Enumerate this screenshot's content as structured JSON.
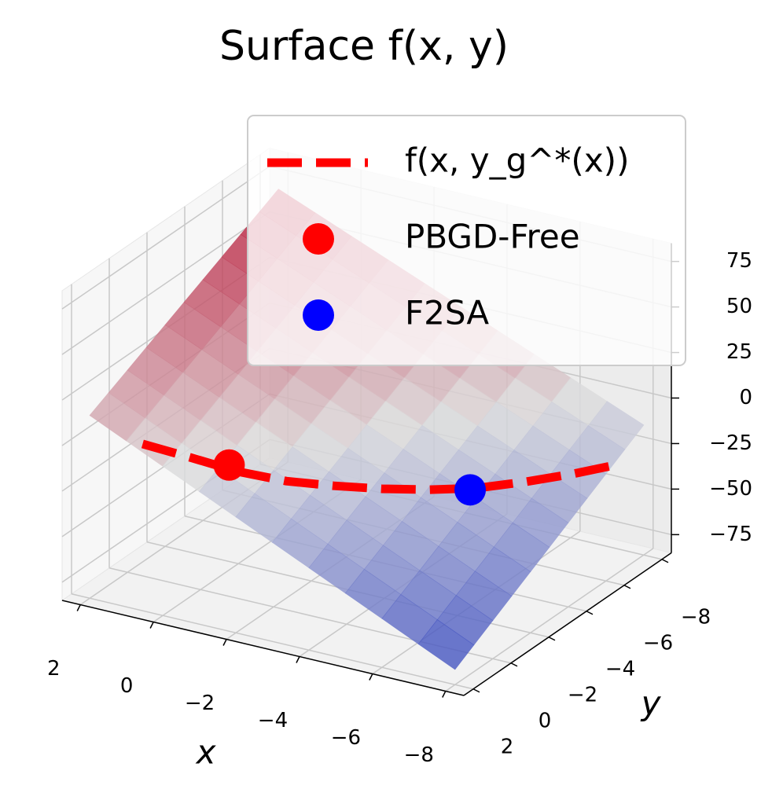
{
  "chart_data": {
    "type": "surface3d",
    "title": "Surface f(x, y)",
    "xlabel": "x",
    "ylabel": "y",
    "xlim": [
      2.5,
      -8.5
    ],
    "ylim": [
      2.5,
      -8.5
    ],
    "zlim": [
      -85,
      85
    ],
    "xticks": [
      2,
      0,
      {
        "value": -2,
        "label": "−2"
      },
      {
        "value": -4,
        "label": "−4"
      },
      {
        "value": -6,
        "label": "−6"
      },
      {
        "value": -8,
        "label": "−8"
      }
    ],
    "yticks": [
      {
        "value": -8,
        "label": "−8"
      },
      {
        "value": -6,
        "label": "−6"
      },
      {
        "value": -4,
        "label": "−4"
      },
      {
        "value": -2,
        "label": "−2"
      },
      0,
      2
    ],
    "zticks": [
      75,
      50,
      25,
      0,
      {
        "value": -25,
        "label": "−25"
      },
      {
        "value": -50,
        "label": "−50"
      },
      {
        "value": -75,
        "label": "−75"
      }
    ],
    "grid": true,
    "surface": {
      "colormap": "coolwarm",
      "x": [
        -8,
        -7,
        -6,
        -5,
        -4,
        -3,
        -2,
        -1,
        0,
        1,
        2
      ],
      "y": [
        -8,
        -7,
        -6,
        -5,
        -4,
        -3,
        -2,
        -1,
        0,
        1,
        2
      ],
      "z": [
        [
          -13.6,
          -5.4,
          2.8,
          11,
          19.2,
          27.4,
          35.6,
          43.8,
          52,
          60.2,
          68.4
        ],
        [
          -19.9,
          -11.6,
          -3.3,
          5,
          13.3,
          21.6,
          29.9,
          38.2,
          46.5,
          54.8,
          63.1
        ],
        [
          -26.2,
          -17.8,
          -9.4,
          -1,
          7.4,
          15.8,
          24.2,
          32.6,
          41,
          49.4,
          57.8
        ],
        [
          -32.5,
          -24,
          -15.5,
          -7,
          1.5,
          10,
          18.5,
          27,
          35.5,
          44,
          52.5
        ],
        [
          -38.8,
          -30.2,
          -21.6,
          -13,
          -4.4,
          4.2,
          12.8,
          21.4,
          30,
          38.6,
          47.2
        ],
        [
          -45.1,
          -36.4,
          -27.7,
          -19,
          -10.3,
          -1.6,
          7.1,
          15.8,
          24.5,
          33.2,
          41.9
        ],
        [
          -51.4,
          -42.6,
          -33.8,
          -25,
          -16.2,
          -7.4,
          1.4,
          10.2,
          19,
          27.8,
          36.6
        ],
        [
          -57.7,
          -48.8,
          -39.9,
          -31,
          -22.1,
          -13.2,
          -4.3,
          4.6,
          13.5,
          22.4,
          31.3
        ],
        [
          -64,
          -55,
          -46,
          -37,
          -28,
          -19,
          -10,
          -1,
          8,
          17,
          26
        ],
        [
          -70.3,
          -61.2,
          -52.1,
          -43,
          -33.9,
          -24.8,
          -15.7,
          -6.6,
          2.5,
          11.6,
          20.7
        ],
        [
          -76.6,
          -67.4,
          -58.2,
          -49,
          -39.8,
          -30.6,
          -21.4,
          -12.2,
          -3,
          6.2,
          15.4
        ]
      ]
    },
    "series": [
      {
        "name": "f(x, y_g^*(x))",
        "color": "#ff0000",
        "kind": "dashed-line",
        "x": [
          2,
          1,
          0,
          -1,
          -2,
          -3,
          -4,
          -5,
          -6,
          -7,
          -8
        ],
        "y": [
          -0.8,
          -1.4,
          -2,
          -2.6,
          -3.2,
          -3.8,
          -4.4,
          -5,
          -5.6,
          -6.2,
          -6.8
        ],
        "z": [
          -20.2,
          -27.2,
          -34.5,
          -39.2,
          -41.3,
          -42.5,
          -42.5,
          -41.1,
          -37.2,
          -32.4,
          -26.4
        ]
      },
      {
        "name": "PBGD-Free",
        "color": "#ff0000",
        "kind": "point",
        "x": [
          0.2
        ],
        "y": [
          -1.9
        ],
        "z": [
          -31.1
        ]
      },
      {
        "name": "F2SA",
        "color": "#0000ff",
        "kind": "point",
        "x": [
          -4.85
        ],
        "y": [
          -4.9
        ],
        "z": [
          -42.1
        ]
      }
    ],
    "legend": "upper right"
  }
}
